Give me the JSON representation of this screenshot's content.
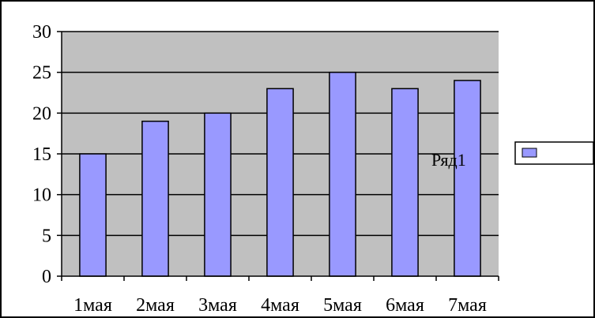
{
  "chart_data": {
    "type": "bar",
    "categories": [
      "1мая",
      "2мая",
      "3мая",
      "4мая",
      "5мая",
      "6мая",
      "7мая"
    ],
    "series": [
      {
        "name": "Ряд1",
        "values": [
          15,
          19,
          20,
          23,
          25,
          23,
          24
        ]
      }
    ],
    "title": "",
    "xlabel": "",
    "ylabel": "",
    "ylim": [
      0,
      30
    ],
    "yticks": [
      0,
      5,
      10,
      15,
      20,
      25,
      30
    ],
    "grid": true,
    "legend": "right",
    "colors": {
      "bar_fill": "#9999ff",
      "plot_background": "#c0c0c0",
      "gridline": "#000000"
    }
  }
}
